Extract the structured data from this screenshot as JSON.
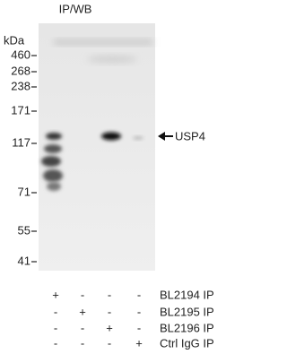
{
  "title": "IP/WB",
  "markers": {
    "unit": "kDa",
    "labels": [
      460,
      268,
      238,
      171,
      117,
      71,
      55,
      41
    ]
  },
  "band_label": "USP4",
  "lanes": {
    "rows": [
      {
        "label": "BL2194 IP",
        "signs": [
          "+",
          "-",
          "-",
          "-"
        ]
      },
      {
        "label": "BL2195 IP",
        "signs": [
          "-",
          "+",
          "-",
          "-"
        ]
      },
      {
        "label": "BL2196 IP",
        "signs": [
          "-",
          "-",
          "+",
          "-"
        ]
      },
      {
        "label": "Ctrl IgG IP",
        "signs": [
          "-",
          "-",
          "-",
          "+"
        ]
      }
    ]
  }
}
